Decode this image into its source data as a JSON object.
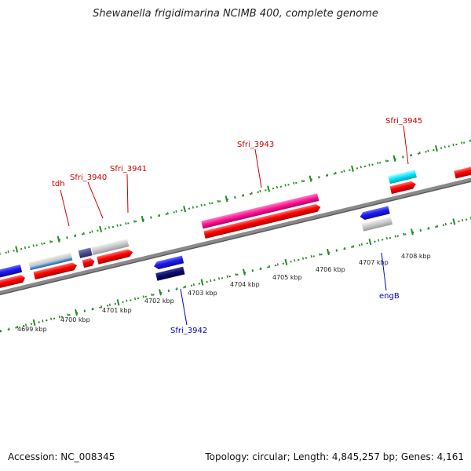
{
  "title": "Shewanella frigidimarina NCIMB 400, complete genome",
  "footer": {
    "accession": "Accession: NC_008345",
    "summary": "Topology: circular; Length: 4,845,257 bp; Genes: 4,161"
  },
  "gene_labels": [
    {
      "id": "tdh",
      "text": "tdh",
      "color": "#cc0000"
    },
    {
      "id": "sfri-3940",
      "text": "Sfri_3940",
      "color": "#cc0000"
    },
    {
      "id": "sfri-3941",
      "text": "Sfri_3941",
      "color": "#cc0000"
    },
    {
      "id": "sfri-3943",
      "text": "Sfri_3943",
      "color": "#cc0000"
    },
    {
      "id": "sfri-3945",
      "text": "Sfri_3945",
      "color": "#cc0000"
    },
    {
      "id": "sfri-3942",
      "text": "Sfri_3942",
      "color": "#0000cc"
    },
    {
      "id": "engb",
      "text": "engB",
      "color": "#0000cc"
    }
  ],
  "kbp_ticks": [
    "4699 kbp",
    "4700 kbp",
    "4701 kbp",
    "4702 kbp",
    "4703 kbp",
    "4704 kbp",
    "4705 kbp",
    "4706 kbp",
    "4707 kbp",
    "4708 kbp"
  ],
  "colors": {
    "backbone": "#8a8a8a",
    "tick_marks": "#228b22",
    "cds": "#ff0000",
    "gene_blue": "#1a1aee",
    "gene_navy": "#0a0a6e",
    "gene_gray": "#c8c8c8",
    "gene_steelblue": "#4a8ec8",
    "gene_slate": "#4a4a8e",
    "gene_pink": "#ff1493",
    "gene_cyan": "#00e5ff"
  }
}
